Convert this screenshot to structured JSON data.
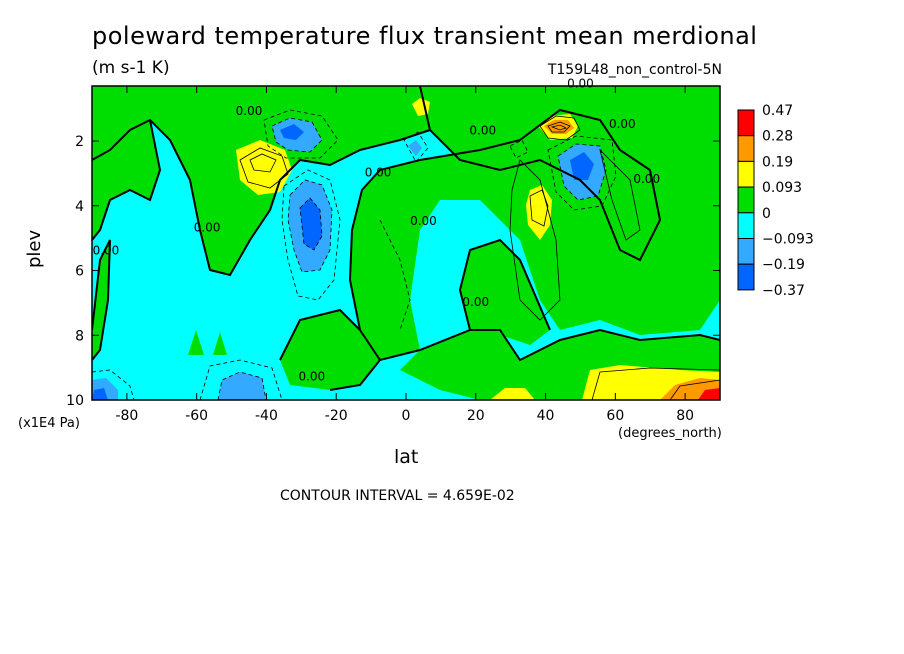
{
  "chart_data": {
    "type": "heatmap",
    "title": "poleward temperature flux transient mean merdional",
    "units": "(m s-1 K)",
    "dataset": "T159L48_non_control-5N",
    "xlabel": "lat",
    "xunits": "(degrees_north)",
    "ylabel": "plev",
    "yunits": "(x1E4 Pa)",
    "xlim": [
      -90,
      90
    ],
    "ylim": [
      0.3,
      10
    ],
    "y_inverted": true,
    "x_ticks": [
      "-80",
      "-60",
      "-40",
      "-20",
      "0",
      "20",
      "40",
      "60",
      "80"
    ],
    "x_tick_values": [
      -80,
      -60,
      -40,
      -20,
      0,
      20,
      40,
      60,
      80
    ],
    "y_ticks": [
      "2",
      "4",
      "6",
      "8",
      "10"
    ],
    "y_tick_values": [
      2,
      4,
      6,
      8,
      10
    ],
    "contour_interval": "CONTOUR INTERVAL = 4.659E-02",
    "colorbar": {
      "labels": [
        "0.47",
        "0.28",
        "0.19",
        "0.093",
        "0",
        "−0.093",
        "−0.19",
        "−0.37"
      ],
      "colors": [
        "#ff0000",
        "#ff9900",
        "#ffff00",
        "#00dd00",
        "#00ffff",
        "#33aaff",
        "#0066ff"
      ]
    },
    "contour_labels": [
      {
        "text": "0.00",
        "lat": 50,
        "plev": 0.35
      },
      {
        "text": "0.00",
        "lat": 62,
        "plev": 1.6
      },
      {
        "text": "0.00",
        "lat": 22,
        "plev": 1.8
      },
      {
        "text": "0.00",
        "lat": -8,
        "plev": 3.1
      },
      {
        "text": "0.00",
        "lat": 5,
        "plev": 4.6
      },
      {
        "text": "0.00",
        "lat": -57,
        "plev": 4.8
      },
      {
        "text": "0.00",
        "lat": -86,
        "plev": 5.5
      },
      {
        "text": "0.00",
        "lat": 20,
        "plev": 7.1
      },
      {
        "text": "0.00",
        "lat": -27,
        "plev": 9.4
      },
      {
        "text": "0.00",
        "lat": 69,
        "plev": 3.3
      },
      {
        "text": "0.00",
        "lat": -45,
        "plev": 1.2
      }
    ],
    "regions": [
      {
        "class": "0 to 0.093",
        "color": "#00dd00",
        "centers": [
          [
            -60,
            2
          ],
          [
            -85,
            2
          ],
          [
            5,
            4
          ],
          [
            10,
            7
          ],
          [
            60,
            5
          ],
          [
            -30,
            8
          ],
          [
            80,
            1.5
          ]
        ]
      },
      {
        "class": "-0.093 to 0",
        "color": "#00ffff",
        "centers": [
          [
            -70,
            6
          ],
          [
            -20,
            5
          ],
          [
            30,
            5.5
          ],
          [
            -10,
            9.5
          ],
          [
            20,
            2.5
          ]
        ]
      },
      {
        "class": "0.093 to 0.19",
        "color": "#ffff00",
        "centers": [
          [
            -42,
            2.5
          ],
          [
            40,
            4.1
          ],
          [
            8,
            1
          ],
          [
            75,
            9.5
          ],
          [
            30,
            9.8
          ]
        ]
      },
      {
        "class": "0.19 to 0.28",
        "color": "#ff9900",
        "centers": [
          [
            43,
            1.4
          ],
          [
            82,
            9.6
          ]
        ]
      },
      {
        "class": "0.28 to 0.47",
        "color": "#ff0000",
        "centers": [
          [
            86,
            9.8
          ]
        ]
      },
      {
        "class": "-0.19 to -0.093",
        "color": "#33aaff",
        "centers": [
          [
            -28,
            4.5
          ],
          [
            -33,
            1.6
          ],
          [
            50,
            2.8
          ],
          [
            -50,
            9.6
          ],
          [
            -88,
            9.7
          ]
        ]
      },
      {
        "class": "-0.37 to -0.19",
        "color": "#0066ff",
        "centers": [
          [
            -27,
            4.3
          ],
          [
            48,
            2.6
          ],
          [
            -35,
            1.5
          ]
        ]
      }
    ]
  }
}
